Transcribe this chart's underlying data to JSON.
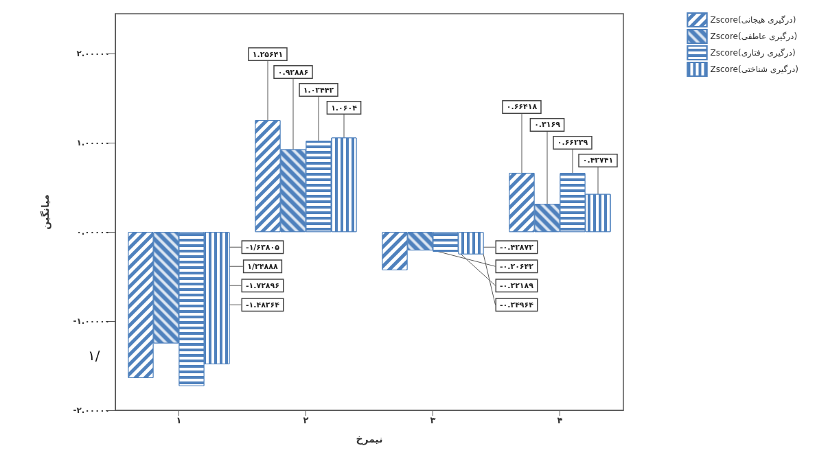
{
  "chart_data": {
    "type": "bar",
    "xlabel": "نیمرخ",
    "ylabel": "میانگین",
    "categories": [
      "۱",
      "۲",
      "۳",
      "۴"
    ],
    "series": [
      {
        "name": "Zscore(درگیری هیجانی)",
        "color": "#4f81bd",
        "values": [
          -1.63805,
          1.25641,
          -0.42872,
          0.66418
        ],
        "value_labels": [
          "-۱/۶۳۸۰۵",
          "۱.۲۵۶۴۱",
          "-۰.۴۲۸۷۲",
          "۰.۶۶۴۱۸"
        ]
      },
      {
        "name": "Zscore(درگیری عاطفی)",
        "color": "#4f81bd",
        "values": [
          -1.24888,
          0.92886,
          -0.20642,
          0.3169
        ],
        "value_labels": [
          "۱/۲۴۸۸۸",
          "۰.۹۲۸۸۶",
          "-۰.۲۰۶۴۲",
          "۰.۳۱۶۹"
        ]
      },
      {
        "name": "Zscore(درگیری رفتاری)",
        "color": "#4f81bd",
        "values": [
          -1.72896,
          1.02442,
          -0.22189,
          0.66239
        ],
        "value_labels": [
          "-۱.۷۲۸۹۶",
          "۱.۰۲۴۴۲",
          "-۰.۲۲۱۸۹",
          "۰.۶۶۲۳۹"
        ]
      },
      {
        "name": "Zscore(درگیری شناختی)",
        "color": "#4f81bd",
        "values": [
          -1.48264,
          1.0604,
          -0.24964,
          0.42741
        ],
        "value_labels": [
          "-۱.۴۸۲۶۴",
          "۱.۰۶۰۴",
          "-۰.۲۴۹۶۴",
          "۰.۴۲۷۴۱"
        ]
      }
    ],
    "ylim": [
      -2,
      2.45
    ],
    "yticks": [
      {
        "value": -2,
        "label": "-۲.۰۰۰۰۰"
      },
      {
        "value": -1,
        "label": "-۱.۰۰۰۰۰"
      },
      {
        "value": 0,
        "label": "۰.۰۰۰۰۰"
      },
      {
        "value": 1,
        "label": "۱.۰۰۰۰۰"
      },
      {
        "value": 2,
        "label": "۲.۰۰۰۰۰"
      }
    ],
    "grid": false,
    "legend": "top right",
    "annotations": [
      "۱/"
    ]
  }
}
